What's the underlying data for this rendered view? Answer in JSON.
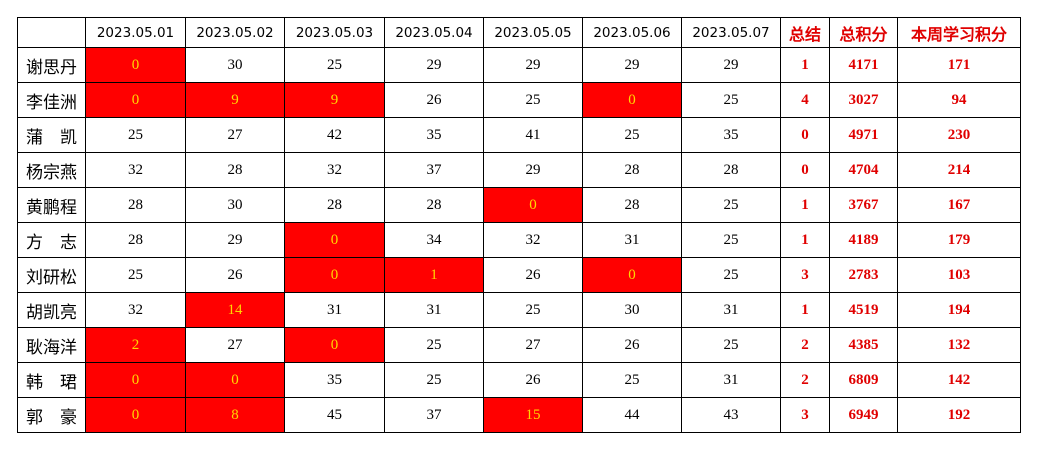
{
  "table": {
    "header": [
      "",
      "2023.05.01",
      "2023.05.02",
      "2023.05.03",
      "2023.05.04",
      "2023.05.05",
      "2023.05.06",
      "2023.05.07",
      "总结",
      "总积分",
      "本周学习积分"
    ],
    "highlight_below": 20,
    "rows": [
      [
        "谢思丹",
        0,
        30,
        25,
        29,
        29,
        29,
        29,
        1,
        4171,
        171
      ],
      [
        "李佳洲",
        0,
        9,
        9,
        26,
        25,
        0,
        25,
        4,
        3027,
        94
      ],
      [
        "蒲　凯",
        25,
        27,
        42,
        35,
        41,
        25,
        35,
        0,
        4971,
        230
      ],
      [
        "杨宗燕",
        32,
        28,
        32,
        37,
        29,
        28,
        28,
        0,
        4704,
        214
      ],
      [
        "黄鹏程",
        28,
        30,
        28,
        28,
        0,
        28,
        25,
        1,
        3767,
        167
      ],
      [
        "方　志",
        28,
        29,
        0,
        34,
        32,
        31,
        25,
        1,
        4189,
        179
      ],
      [
        "刘研松",
        25,
        26,
        0,
        1,
        26,
        0,
        25,
        3,
        2783,
        103
      ],
      [
        "胡凯亮",
        32,
        14,
        31,
        31,
        25,
        30,
        31,
        1,
        4519,
        194
      ],
      [
        "耿海洋",
        2,
        27,
        0,
        25,
        27,
        26,
        25,
        2,
        4385,
        132
      ],
      [
        "韩　珺",
        0,
        0,
        35,
        25,
        26,
        25,
        31,
        2,
        6809,
        142
      ],
      [
        "郭　豪",
        0,
        8,
        45,
        37,
        15,
        44,
        43,
        3,
        6949,
        192
      ]
    ]
  }
}
